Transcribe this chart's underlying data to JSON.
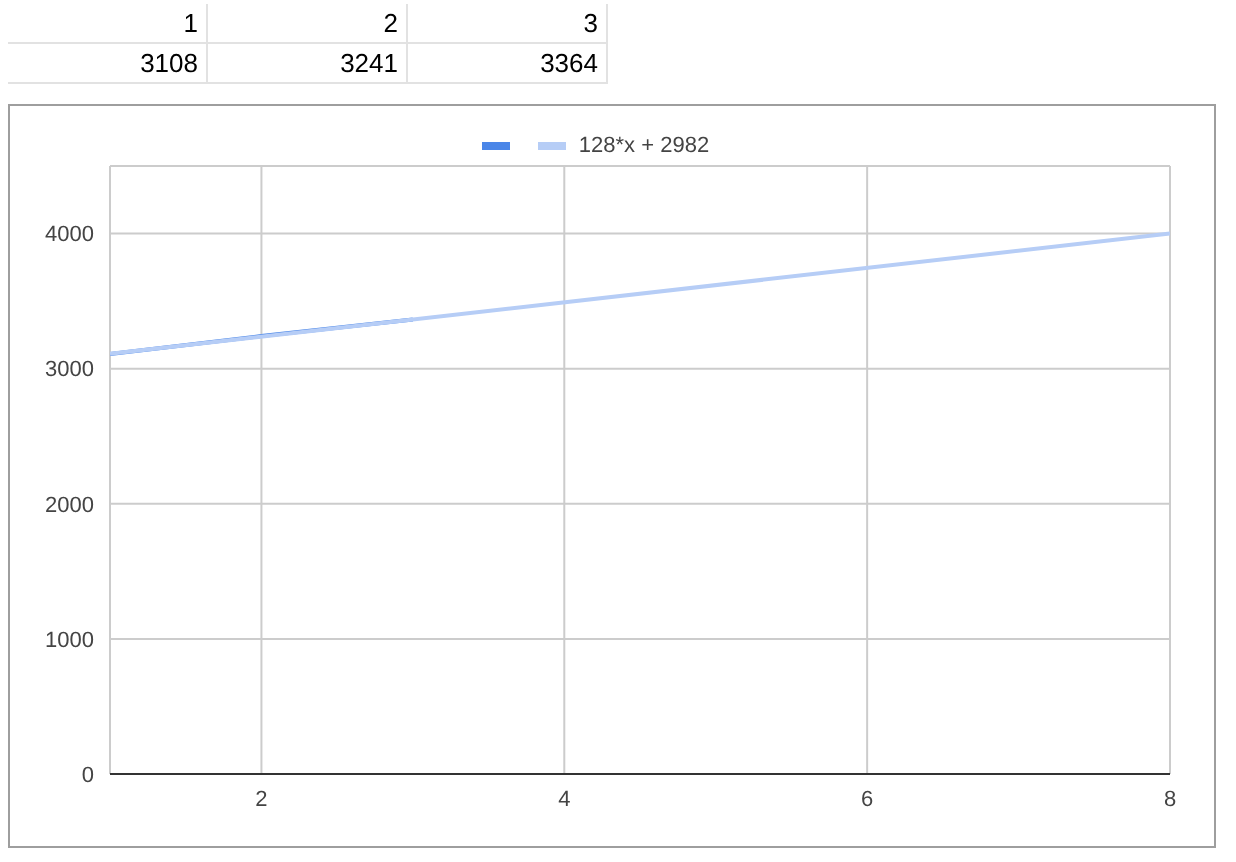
{
  "chart_data": {
    "type": "line",
    "xlim": [
      1,
      8
    ],
    "xticks": [
      2,
      4,
      6,
      8
    ],
    "ylim": [
      0,
      4500
    ],
    "yticks": [
      0,
      1000,
      2000,
      3000,
      4000
    ],
    "grid": true,
    "legend": "top",
    "marker": "none",
    "annotations": [
      "1",
      "2",
      "3",
      "3108",
      "3241",
      "3364"
    ],
    "series": [
      {
        "x": [
          1,
          2,
          3
        ],
        "values": [
          3108,
          3241,
          3364
        ],
        "color": "#4a86e8"
      },
      {
        "name": "128*x + 2982",
        "x": [
          1,
          8
        ],
        "values": [
          3110,
          4000
        ],
        "color": "#b6cdf6"
      }
    ]
  }
}
